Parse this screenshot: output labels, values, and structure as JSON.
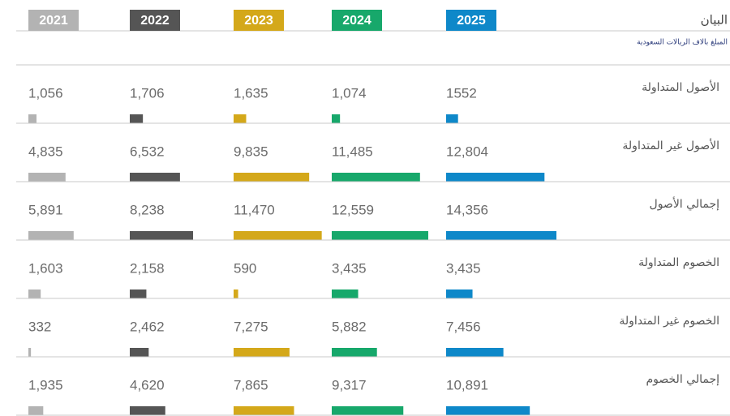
{
  "header": {
    "title": "البيان",
    "subtitle": "المبلغ بالاف الريالات السعودية"
  },
  "columns": [
    {
      "year": "2021",
      "color": "#b3b3b3"
    },
    {
      "year": "2022",
      "color": "#555555"
    },
    {
      "year": "2023",
      "color": "#d4a81a"
    },
    {
      "year": "2024",
      "color": "#17a86b"
    },
    {
      "year": "2025",
      "color": "#0e88c9"
    }
  ],
  "rows": [
    {
      "label": "الأصول المتداولة",
      "values": [
        1056,
        1706,
        1635,
        1074,
        1552
      ],
      "value_labels": [
        "1,056",
        "1,706",
        "1,635",
        "1,074",
        "1552"
      ]
    },
    {
      "label": "الأصول غير المتداولة",
      "values": [
        4835,
        6532,
        9835,
        11485,
        12804
      ],
      "value_labels": [
        "4,835",
        "6,532",
        "9,835",
        "11,485",
        "12,804"
      ]
    },
    {
      "label": "إجمالي الأصول",
      "values": [
        5891,
        8238,
        11470,
        12559,
        14356
      ],
      "value_labels": [
        "5,891",
        "8,238",
        "11,470",
        "12,559",
        "14,356"
      ]
    },
    {
      "label": "الخصوم المتداولة",
      "values": [
        1603,
        2158,
        590,
        3435,
        3435
      ],
      "value_labels": [
        "1,603",
        "2,158",
        "590",
        "3,435",
        "3,435"
      ]
    },
    {
      "label": "الخصوم غير المتداولة",
      "values": [
        332,
        2462,
        7275,
        5882,
        7456
      ],
      "value_labels": [
        "332",
        "2,462",
        "7,275",
        "5,882",
        "7,456"
      ]
    },
    {
      "label": "إجمالي الخصوم",
      "values": [
        1935,
        4620,
        7865,
        9317,
        10891
      ],
      "value_labels": [
        "1,935",
        "4,620",
        "7,865",
        "9,317",
        "10,891"
      ]
    }
  ]
}
